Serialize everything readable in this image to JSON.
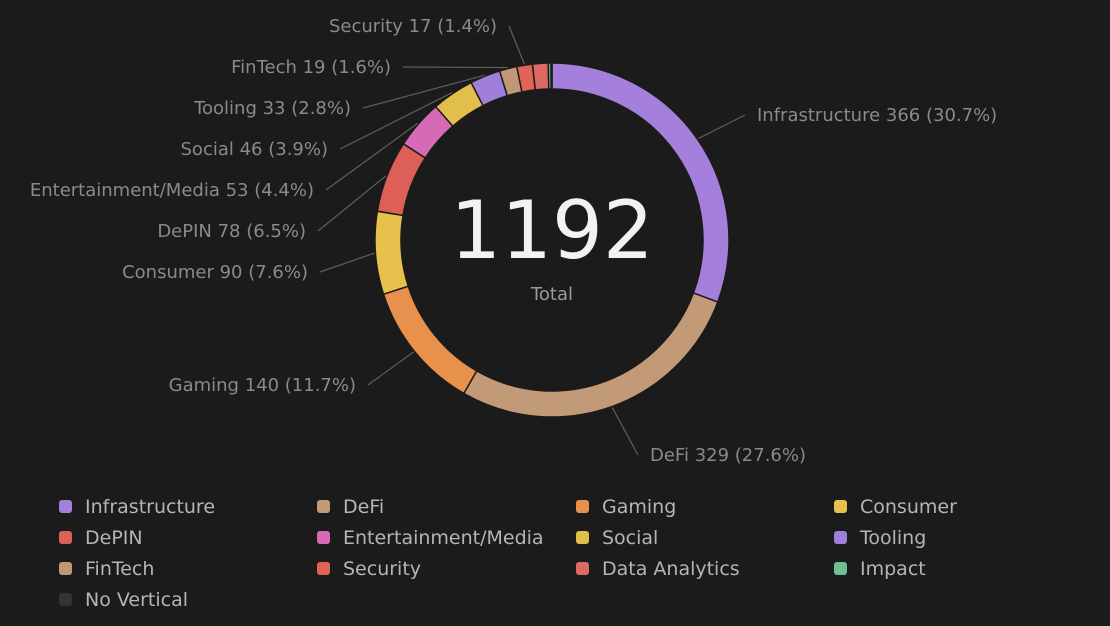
{
  "chart_data": {
    "type": "pie",
    "total": 1192,
    "total_caption": "Total",
    "slices": [
      {
        "name": "Infrastructure",
        "value": 366,
        "percent": "30.7%",
        "label": "Infrastructure 366 (30.7%)",
        "color": "#a47fdc"
      },
      {
        "name": "DeFi",
        "value": 329,
        "percent": "27.6%",
        "label": "DeFi 329 (27.6%)",
        "color": "#c39a78"
      },
      {
        "name": "Gaming",
        "value": 140,
        "percent": "11.7%",
        "label": "Gaming 140 (11.7%)",
        "color": "#e8914d"
      },
      {
        "name": "Consumer",
        "value": 90,
        "percent": "7.6%",
        "label": "Consumer 90 (7.6%)",
        "color": "#e8c04c"
      },
      {
        "name": "DePIN",
        "value": 78,
        "percent": "6.5%",
        "label": "DePIN 78 (6.5%)",
        "color": "#dc5f58"
      },
      {
        "name": "Entertainment/Media",
        "value": 53,
        "percent": "4.4%",
        "label": "Entertainment/Media 53 (4.4%)",
        "color": "#d76ab6"
      },
      {
        "name": "Social",
        "value": 46,
        "percent": "3.9%",
        "label": "Social 46 (3.9%)",
        "color": "#e2bf4a"
      },
      {
        "name": "Tooling",
        "value": 33,
        "percent": "2.8%",
        "label": "Tooling 33 (2.8%)",
        "color": "#a07fdb"
      },
      {
        "name": "FinTech",
        "value": 19,
        "percent": "1.6%",
        "label": "FinTech 19 (1.6%)",
        "color": "#c19874"
      },
      {
        "name": "Security",
        "value": 17,
        "percent": "1.4%",
        "label": "Security 17 (1.4%)",
        "color": "#df6456"
      },
      {
        "name": "Data Analytics",
        "value": 17,
        "label": "",
        "color": "#dc6a62"
      },
      {
        "name": "Impact",
        "value": 3,
        "label": "",
        "color": "#6fbf94"
      },
      {
        "name": "No Vertical",
        "value": 1,
        "label": "",
        "color": "#333333"
      }
    ],
    "legend": [
      {
        "name": "Infrastructure",
        "color": "#a47fdc"
      },
      {
        "name": "DeFi",
        "color": "#c39a78"
      },
      {
        "name": "Gaming",
        "color": "#e8914d"
      },
      {
        "name": "Consumer",
        "color": "#e8c04c"
      },
      {
        "name": "DePIN",
        "color": "#dc5f58"
      },
      {
        "name": "Entertainment/Media",
        "color": "#d76ab6"
      },
      {
        "name": "Social",
        "color": "#e2bf4a"
      },
      {
        "name": "Tooling",
        "color": "#a07fdb"
      },
      {
        "name": "FinTech",
        "color": "#c19874"
      },
      {
        "name": "Security",
        "color": "#df6456"
      },
      {
        "name": "Data Analytics",
        "color": "#dc6a62"
      },
      {
        "name": "Impact",
        "color": "#6fbf94"
      },
      {
        "name": "No Vertical",
        "color": "#333333"
      }
    ],
    "legend_placement": "bottom"
  }
}
